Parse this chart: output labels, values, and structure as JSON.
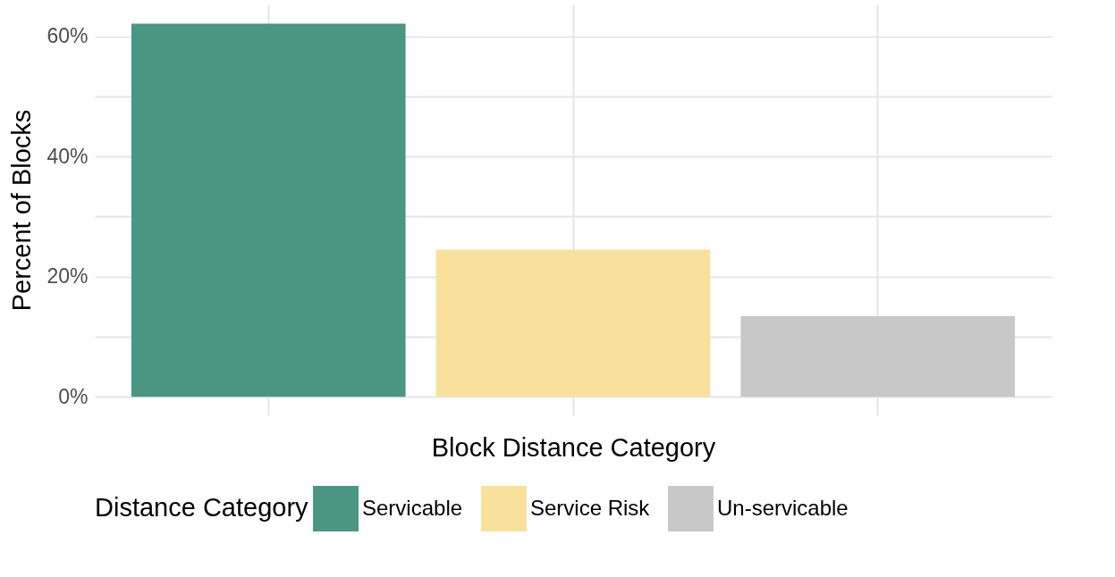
{
  "chart_data": {
    "type": "bar",
    "xlabel": "Block Distance Category",
    "ylabel": "Percent of Blocks",
    "legend_title": "Distance Category",
    "categories": [
      null,
      null,
      null
    ],
    "series": [
      {
        "name": "Servicable",
        "color": "#4a9683",
        "values": [
          62.1,
          null,
          null
        ]
      },
      {
        "name": "Service Risk",
        "color": "#f9e19d",
        "values": [
          null,
          24.5,
          null
        ]
      },
      {
        "name": "Un-servicable",
        "color": "#c8c8c8",
        "values": [
          null,
          null,
          13.4
        ]
      }
    ],
    "ylim": [
      -3.1,
      65.3
    ],
    "yticks": [
      {
        "value": 0,
        "label": "0%"
      },
      {
        "value": 10,
        "label": null
      },
      {
        "value": 20,
        "label": "20%"
      },
      {
        "value": 30,
        "label": null
      },
      {
        "value": 40,
        "label": "40%"
      },
      {
        "value": 50,
        "label": null
      },
      {
        "value": 60,
        "label": "60%"
      }
    ],
    "grid": true,
    "legend": "bottom"
  }
}
